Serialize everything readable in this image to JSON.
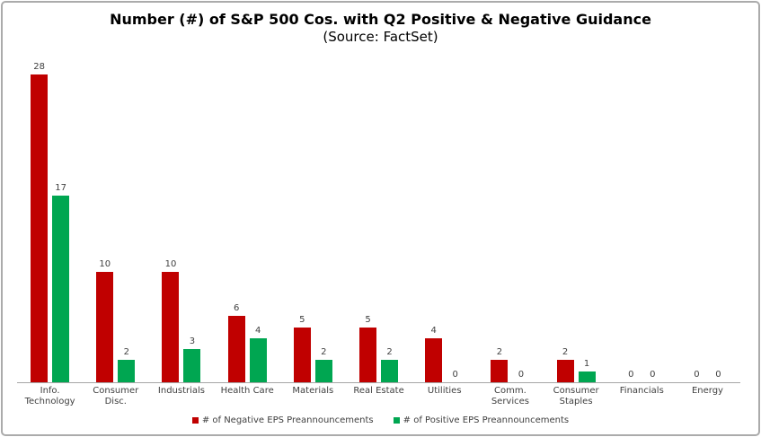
{
  "chart_data": {
    "type": "bar",
    "title": "Number (#) of S&P 500 Cos. with Q2 Positive & Negative Guidance",
    "subtitle": "(Source: FactSet)",
    "categories": [
      "Info.\nTechnology",
      "Consumer\nDisc.",
      "Industrials",
      "Health Care",
      "Materials",
      "Real Estate",
      "Utilities",
      "Comm.\nServices",
      "Consumer\nStaples",
      "Financials",
      "Energy"
    ],
    "series": [
      {
        "name": "# of Negative EPS Preannouncements",
        "color": "#c00000",
        "values": [
          28,
          10,
          10,
          6,
          5,
          5,
          4,
          2,
          2,
          0,
          0
        ]
      },
      {
        "name": "# of Positive EPS Preannouncements",
        "color": "#00a651",
        "values": [
          17,
          2,
          3,
          4,
          2,
          2,
          0,
          0,
          1,
          0,
          0
        ]
      }
    ],
    "ylim": [
      0,
      30
    ],
    "grid": false,
    "y_axis_visible": false,
    "value_labels": true,
    "legend_position": "bottom"
  },
  "colors": {
    "text": "#404040",
    "axis_line": "#a6a6a6",
    "frame_border": "#ababab",
    "background": "#ffffff"
  }
}
